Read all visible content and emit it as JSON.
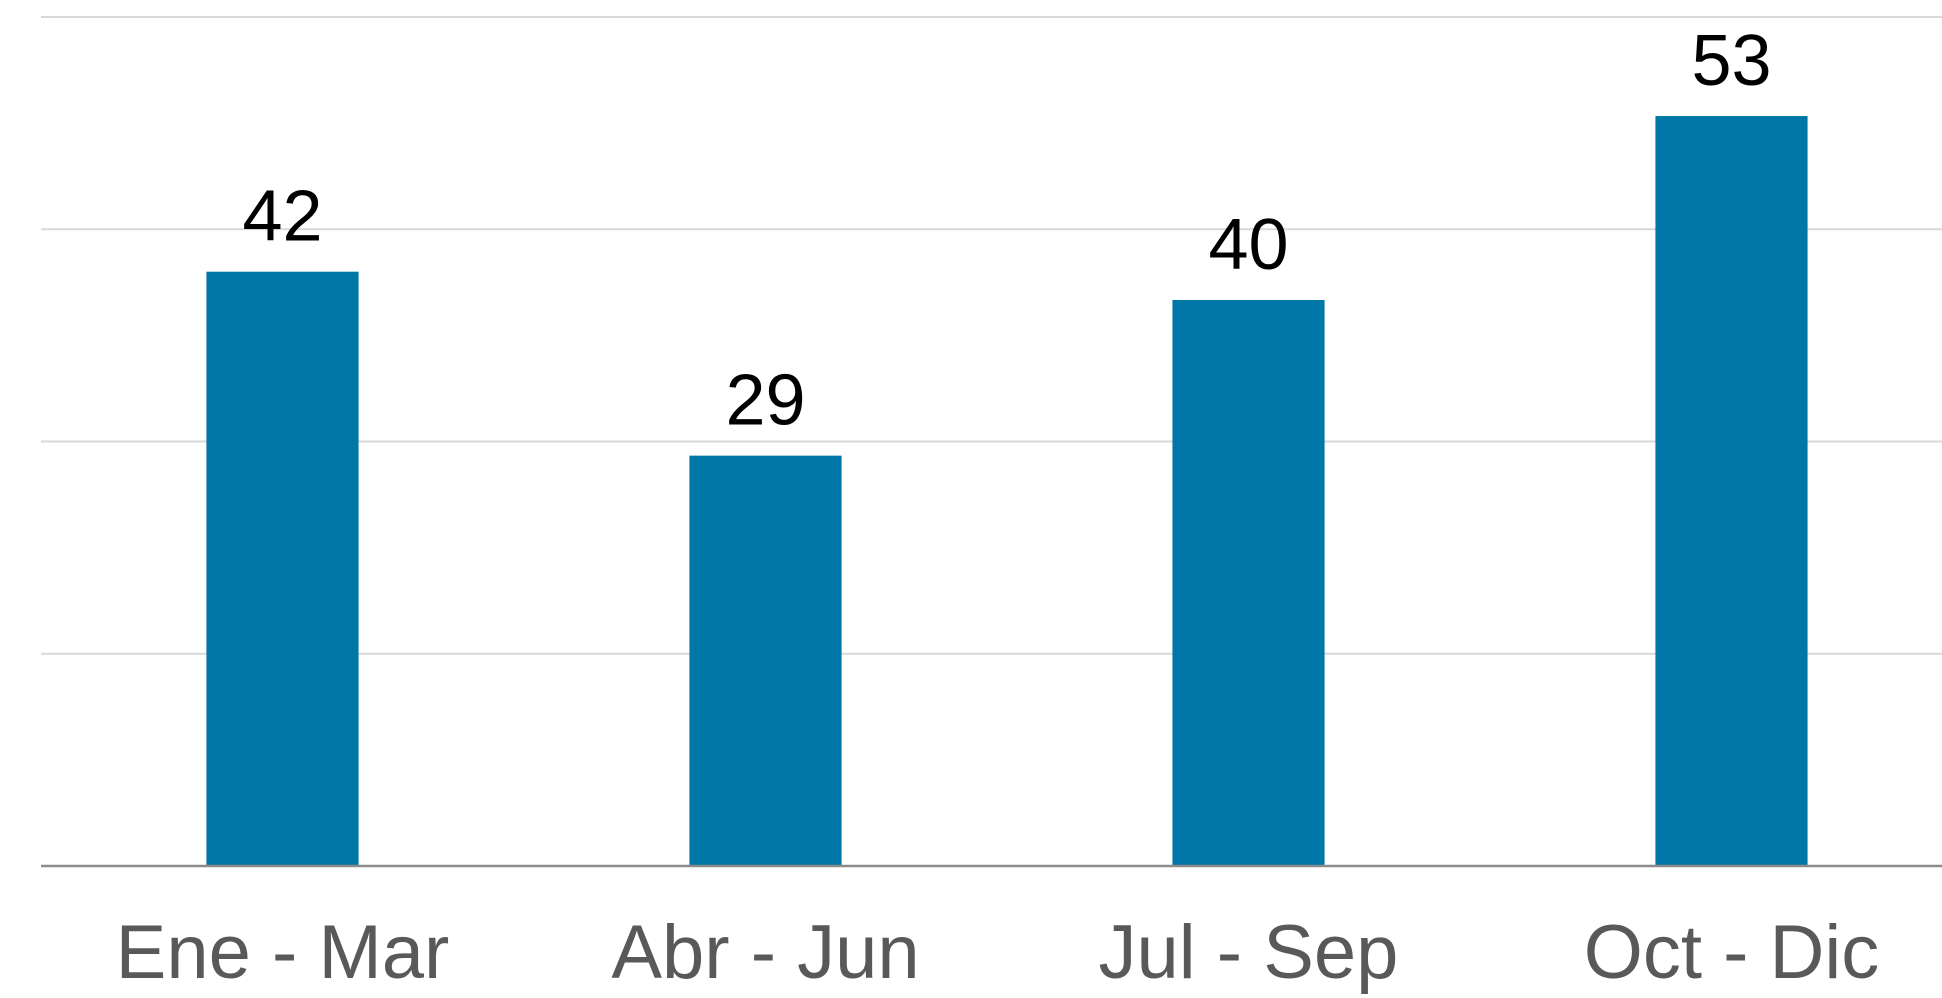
{
  "chart_data": {
    "type": "bar",
    "categories": [
      "Ene - Mar",
      "Abr - Jun",
      "Jul - Sep",
      "Oct - Dic"
    ],
    "values": [
      42,
      29,
      40,
      53
    ],
    "color": "#0077a6",
    "ylim": [
      0,
      60
    ],
    "yticks": [
      0,
      15,
      30,
      45,
      60
    ],
    "grid": true
  }
}
